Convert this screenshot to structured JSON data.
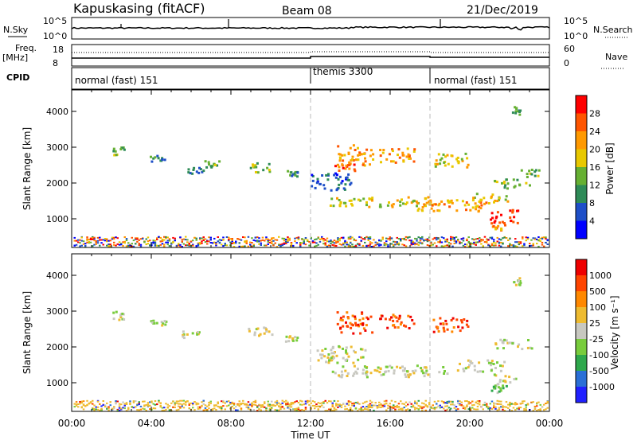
{
  "header": {
    "station": "Kapuskasing (fitACF)",
    "beam": "Beam 08",
    "date": "21/Dec/2019"
  },
  "noise_panel": {
    "left_label": "N.Sky",
    "left_ticks": [
      "10^5",
      "10^0"
    ],
    "right_ticks": [
      "10^5",
      "10^0"
    ],
    "right_label": "N.Search"
  },
  "freq_panel": {
    "left_label_1": "Freq.",
    "left_label_2": "[MHz]",
    "left_ticks": [
      "18",
      "8"
    ],
    "right_ticks": [
      "60",
      "0"
    ],
    "right_label": "Nave"
  },
  "cpid_panel": {
    "label": "CPID",
    "segments": [
      {
        "text": "normal (fast) 151",
        "start": 0,
        "end": 12
      },
      {
        "text": "themis 3300",
        "start": 12,
        "end": 18
      },
      {
        "text": "normal (fast) 151",
        "start": 18,
        "end": 24
      }
    ]
  },
  "colors": {
    "power": [
      "#0000ff",
      "#1e4fc8",
      "#2e8b57",
      "#66b032",
      "#e8c800",
      "#ff9900",
      "#ff5500",
      "#ff0000"
    ],
    "velocity": [
      "#2020ff",
      "#2a6fd6",
      "#2ea84c",
      "#78cc3c",
      "#c8c8c0",
      "#eebb30",
      "#ff8800",
      "#ff4400",
      "#ee0000"
    ]
  },
  "chart_data": [
    {
      "type": "heatmap",
      "quantity": "power",
      "xlabel": "",
      "ylabel": "Slant Range [km]",
      "xlim": [
        0,
        24
      ],
      "ylim": [
        200,
        4600
      ],
      "yticks": [
        "1000",
        "2000",
        "3000",
        "4000"
      ],
      "colorbar_label": "Power [dB]",
      "colorbar_ticks": [
        "28",
        "24",
        "20",
        "16",
        "12",
        "8",
        "4"
      ],
      "blobs": [
        {
          "t": 2.3,
          "r": 2900,
          "dt": 0.3,
          "dr": 130,
          "level": 3
        },
        {
          "t": 4.3,
          "r": 2720,
          "dt": 0.4,
          "dr": 90,
          "level": 2
        },
        {
          "t": 6.0,
          "r": 2400,
          "dt": 0.6,
          "dr": 110,
          "level": 2
        },
        {
          "t": 7.0,
          "r": 2550,
          "dt": 0.4,
          "dr": 90,
          "level": 3
        },
        {
          "t": 9.5,
          "r": 2450,
          "dt": 0.7,
          "dr": 130,
          "level": 3
        },
        {
          "t": 11.0,
          "r": 2300,
          "dt": 0.3,
          "dr": 90,
          "level": 2
        },
        {
          "t": 13.0,
          "r": 2050,
          "dt": 1.0,
          "dr": 250,
          "level": 1
        },
        {
          "t": 14.2,
          "r": 2800,
          "dt": 0.9,
          "dr": 300,
          "level": 5
        },
        {
          "t": 13.7,
          "r": 2450,
          "dt": 0.5,
          "dr": 120,
          "level": 6
        },
        {
          "t": 16.3,
          "r": 2800,
          "dt": 0.9,
          "dr": 200,
          "level": 5
        },
        {
          "t": 19.0,
          "r": 2650,
          "dt": 0.9,
          "dr": 200,
          "level": 4
        },
        {
          "t": 15.5,
          "r": 1500,
          "dt": 2.7,
          "dr": 140,
          "level": 4
        },
        {
          "t": 19.0,
          "r": 1400,
          "dt": 1.8,
          "dr": 160,
          "level": 5
        },
        {
          "t": 21.0,
          "r": 1600,
          "dt": 0.9,
          "dr": 140,
          "level": 4
        },
        {
          "t": 21.7,
          "r": 1100,
          "dt": 0.7,
          "dr": 200,
          "level": 7
        },
        {
          "t": 22.1,
          "r": 2000,
          "dt": 0.9,
          "dr": 130,
          "level": 3
        },
        {
          "t": 23.0,
          "r": 2300,
          "dt": 0.5,
          "dr": 120,
          "level": 3
        },
        {
          "t": 21.4,
          "r": 800,
          "dt": 0.4,
          "dr": 140,
          "level": 5
        },
        {
          "t": 22.3,
          "r": 4050,
          "dt": 0.2,
          "dr": 120,
          "level": 2
        }
      ]
    },
    {
      "type": "heatmap",
      "quantity": "velocity",
      "xlabel": "Time UT",
      "ylabel": "Slant Range [km]",
      "xlim": [
        0,
        24
      ],
      "ylim": [
        200,
        4600
      ],
      "xticks": [
        "00:00",
        "04:00",
        "08:00",
        "12:00",
        "16:00",
        "20:00",
        "00:00"
      ],
      "yticks": [
        "1000",
        "2000",
        "3000",
        "4000"
      ],
      "colorbar_label": "Velocity [m s⁻¹]",
      "colorbar_ticks": [
        "1000",
        "500",
        "100",
        "25",
        "-25",
        "-100",
        "-500",
        "-1000"
      ],
      "blobs": [
        {
          "t": 2.3,
          "r": 2900,
          "dt": 0.3,
          "dr": 130,
          "level": 4
        },
        {
          "t": 4.3,
          "r": 2720,
          "dt": 0.4,
          "dr": 90,
          "level": 4
        },
        {
          "t": 6.0,
          "r": 2350,
          "dt": 0.6,
          "dr": 110,
          "level": 4
        },
        {
          "t": 9.5,
          "r": 2450,
          "dt": 0.7,
          "dr": 130,
          "level": 4
        },
        {
          "t": 11.0,
          "r": 2250,
          "dt": 0.3,
          "dr": 90,
          "level": 4
        },
        {
          "t": 13.5,
          "r": 1800,
          "dt": 1.2,
          "dr": 250,
          "level": 4
        },
        {
          "t": 14.2,
          "r": 2700,
          "dt": 0.9,
          "dr": 300,
          "level": 7
        },
        {
          "t": 16.3,
          "r": 2750,
          "dt": 0.9,
          "dr": 200,
          "level": 7
        },
        {
          "t": 19.0,
          "r": 2650,
          "dt": 0.9,
          "dr": 200,
          "level": 7
        },
        {
          "t": 16.0,
          "r": 1350,
          "dt": 3.0,
          "dr": 160,
          "level": 4
        },
        {
          "t": 20.5,
          "r": 1500,
          "dt": 1.2,
          "dr": 160,
          "level": 4
        },
        {
          "t": 21.7,
          "r": 1100,
          "dt": 0.6,
          "dr": 160,
          "level": 4
        },
        {
          "t": 22.2,
          "r": 2100,
          "dt": 1.0,
          "dr": 130,
          "level": 4
        },
        {
          "t": 21.4,
          "r": 850,
          "dt": 0.4,
          "dr": 120,
          "level": 3
        },
        {
          "t": 22.3,
          "r": 3850,
          "dt": 0.2,
          "dr": 100,
          "level": 4
        }
      ]
    }
  ]
}
